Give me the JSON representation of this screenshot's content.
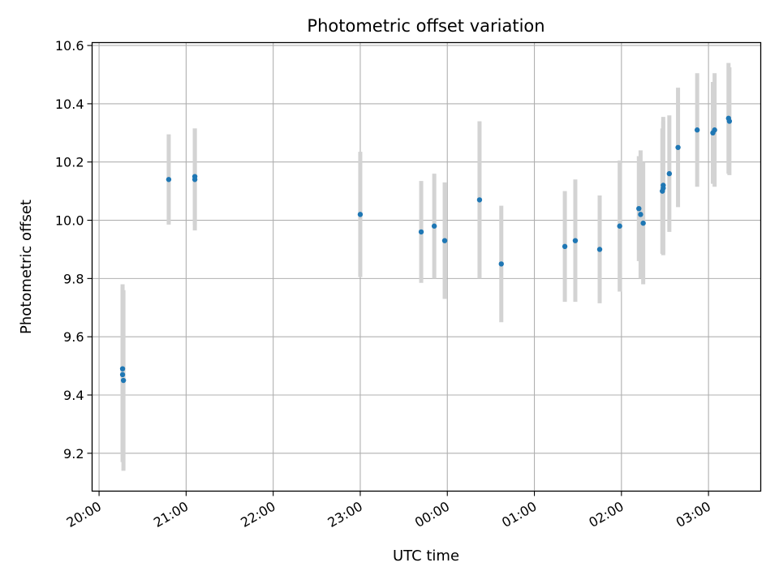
{
  "chart_data": {
    "type": "scatter",
    "title": "Photometric offset variation",
    "xlabel": "UTC time",
    "ylabel": "Photometric offset",
    "x_ticks": [
      "20:00",
      "21:00",
      "22:00",
      "23:00",
      "00:00",
      "01:00",
      "02:00",
      "03:00"
    ],
    "x_tick_hours": [
      0,
      1,
      2,
      3,
      4,
      5,
      6,
      7
    ],
    "xlim_hours": [
      -0.08,
      7.6
    ],
    "y_ticks": [
      "9.2",
      "9.4",
      "9.6",
      "9.8",
      "10.0",
      "10.2",
      "10.4",
      "10.6"
    ],
    "y_tick_values": [
      9.2,
      9.4,
      9.6,
      9.8,
      10.0,
      10.2,
      10.4,
      10.6
    ],
    "ylim": [
      9.07,
      10.61
    ],
    "grid": true,
    "colors": {
      "points": "#1f77b4",
      "errorbars": "#d3d3d3",
      "grid": "#b0b0b0"
    },
    "series": [
      {
        "points": [
          {
            "t": 0.27,
            "y": 9.49,
            "err": 0.29
          },
          {
            "t": 0.27,
            "y": 9.47,
            "err": 0.3
          },
          {
            "t": 0.28,
            "y": 9.45,
            "err": 0.31
          },
          {
            "t": 0.8,
            "y": 10.14,
            "err": 0.155
          },
          {
            "t": 1.1,
            "y": 10.15,
            "err": 0.165
          },
          {
            "t": 1.1,
            "y": 10.14,
            "err": 0.175
          },
          {
            "t": 3.0,
            "y": 10.02,
            "err": 0.215
          },
          {
            "t": 3.7,
            "y": 9.96,
            "err": 0.175
          },
          {
            "t": 3.85,
            "y": 9.98,
            "err": 0.18
          },
          {
            "t": 3.97,
            "y": 9.93,
            "err": 0.2
          },
          {
            "t": 4.37,
            "y": 10.07,
            "err": 0.27
          },
          {
            "t": 4.62,
            "y": 9.85,
            "err": 0.2
          },
          {
            "t": 5.35,
            "y": 9.91,
            "err": 0.19
          },
          {
            "t": 5.47,
            "y": 9.93,
            "err": 0.21
          },
          {
            "t": 5.75,
            "y": 9.9,
            "err": 0.185
          },
          {
            "t": 5.98,
            "y": 9.98,
            "err": 0.225
          },
          {
            "t": 6.2,
            "y": 10.04,
            "err": 0.18
          },
          {
            "t": 6.22,
            "y": 10.02,
            "err": 0.22
          },
          {
            "t": 6.25,
            "y": 9.99,
            "err": 0.21
          },
          {
            "t": 6.47,
            "y": 10.1,
            "err": 0.215
          },
          {
            "t": 6.48,
            "y": 10.12,
            "err": 0.235
          },
          {
            "t": 6.48,
            "y": 10.11,
            "err": 0.23
          },
          {
            "t": 6.55,
            "y": 10.16,
            "err": 0.2
          },
          {
            "t": 6.65,
            "y": 10.25,
            "err": 0.205
          },
          {
            "t": 6.87,
            "y": 10.31,
            "err": 0.195
          },
          {
            "t": 7.05,
            "y": 10.3,
            "err": 0.175
          },
          {
            "t": 7.07,
            "y": 10.31,
            "err": 0.195
          },
          {
            "t": 7.23,
            "y": 10.35,
            "err": 0.19
          },
          {
            "t": 7.24,
            "y": 10.34,
            "err": 0.185
          }
        ]
      }
    ]
  }
}
